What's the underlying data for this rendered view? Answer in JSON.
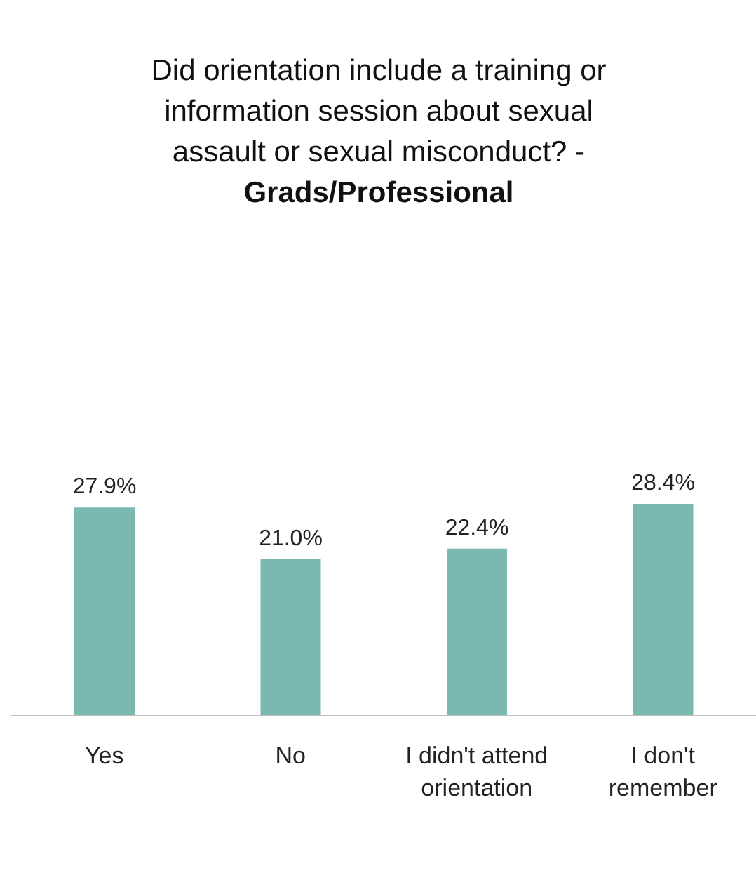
{
  "chart_data": {
    "type": "bar",
    "title": "Did orientation include a training or information session about sexual assault or sexual misconduct? -",
    "subtitle": "Grads/Professional",
    "categories": [
      "Yes",
      "No",
      "I didn't attend orientation",
      "I don't remember"
    ],
    "values": [
      27.9,
      21.0,
      22.4,
      28.4
    ],
    "value_labels": [
      "27.9%",
      "21.0%",
      "22.4%",
      "28.4%"
    ],
    "color": "#7ab8b0"
  }
}
